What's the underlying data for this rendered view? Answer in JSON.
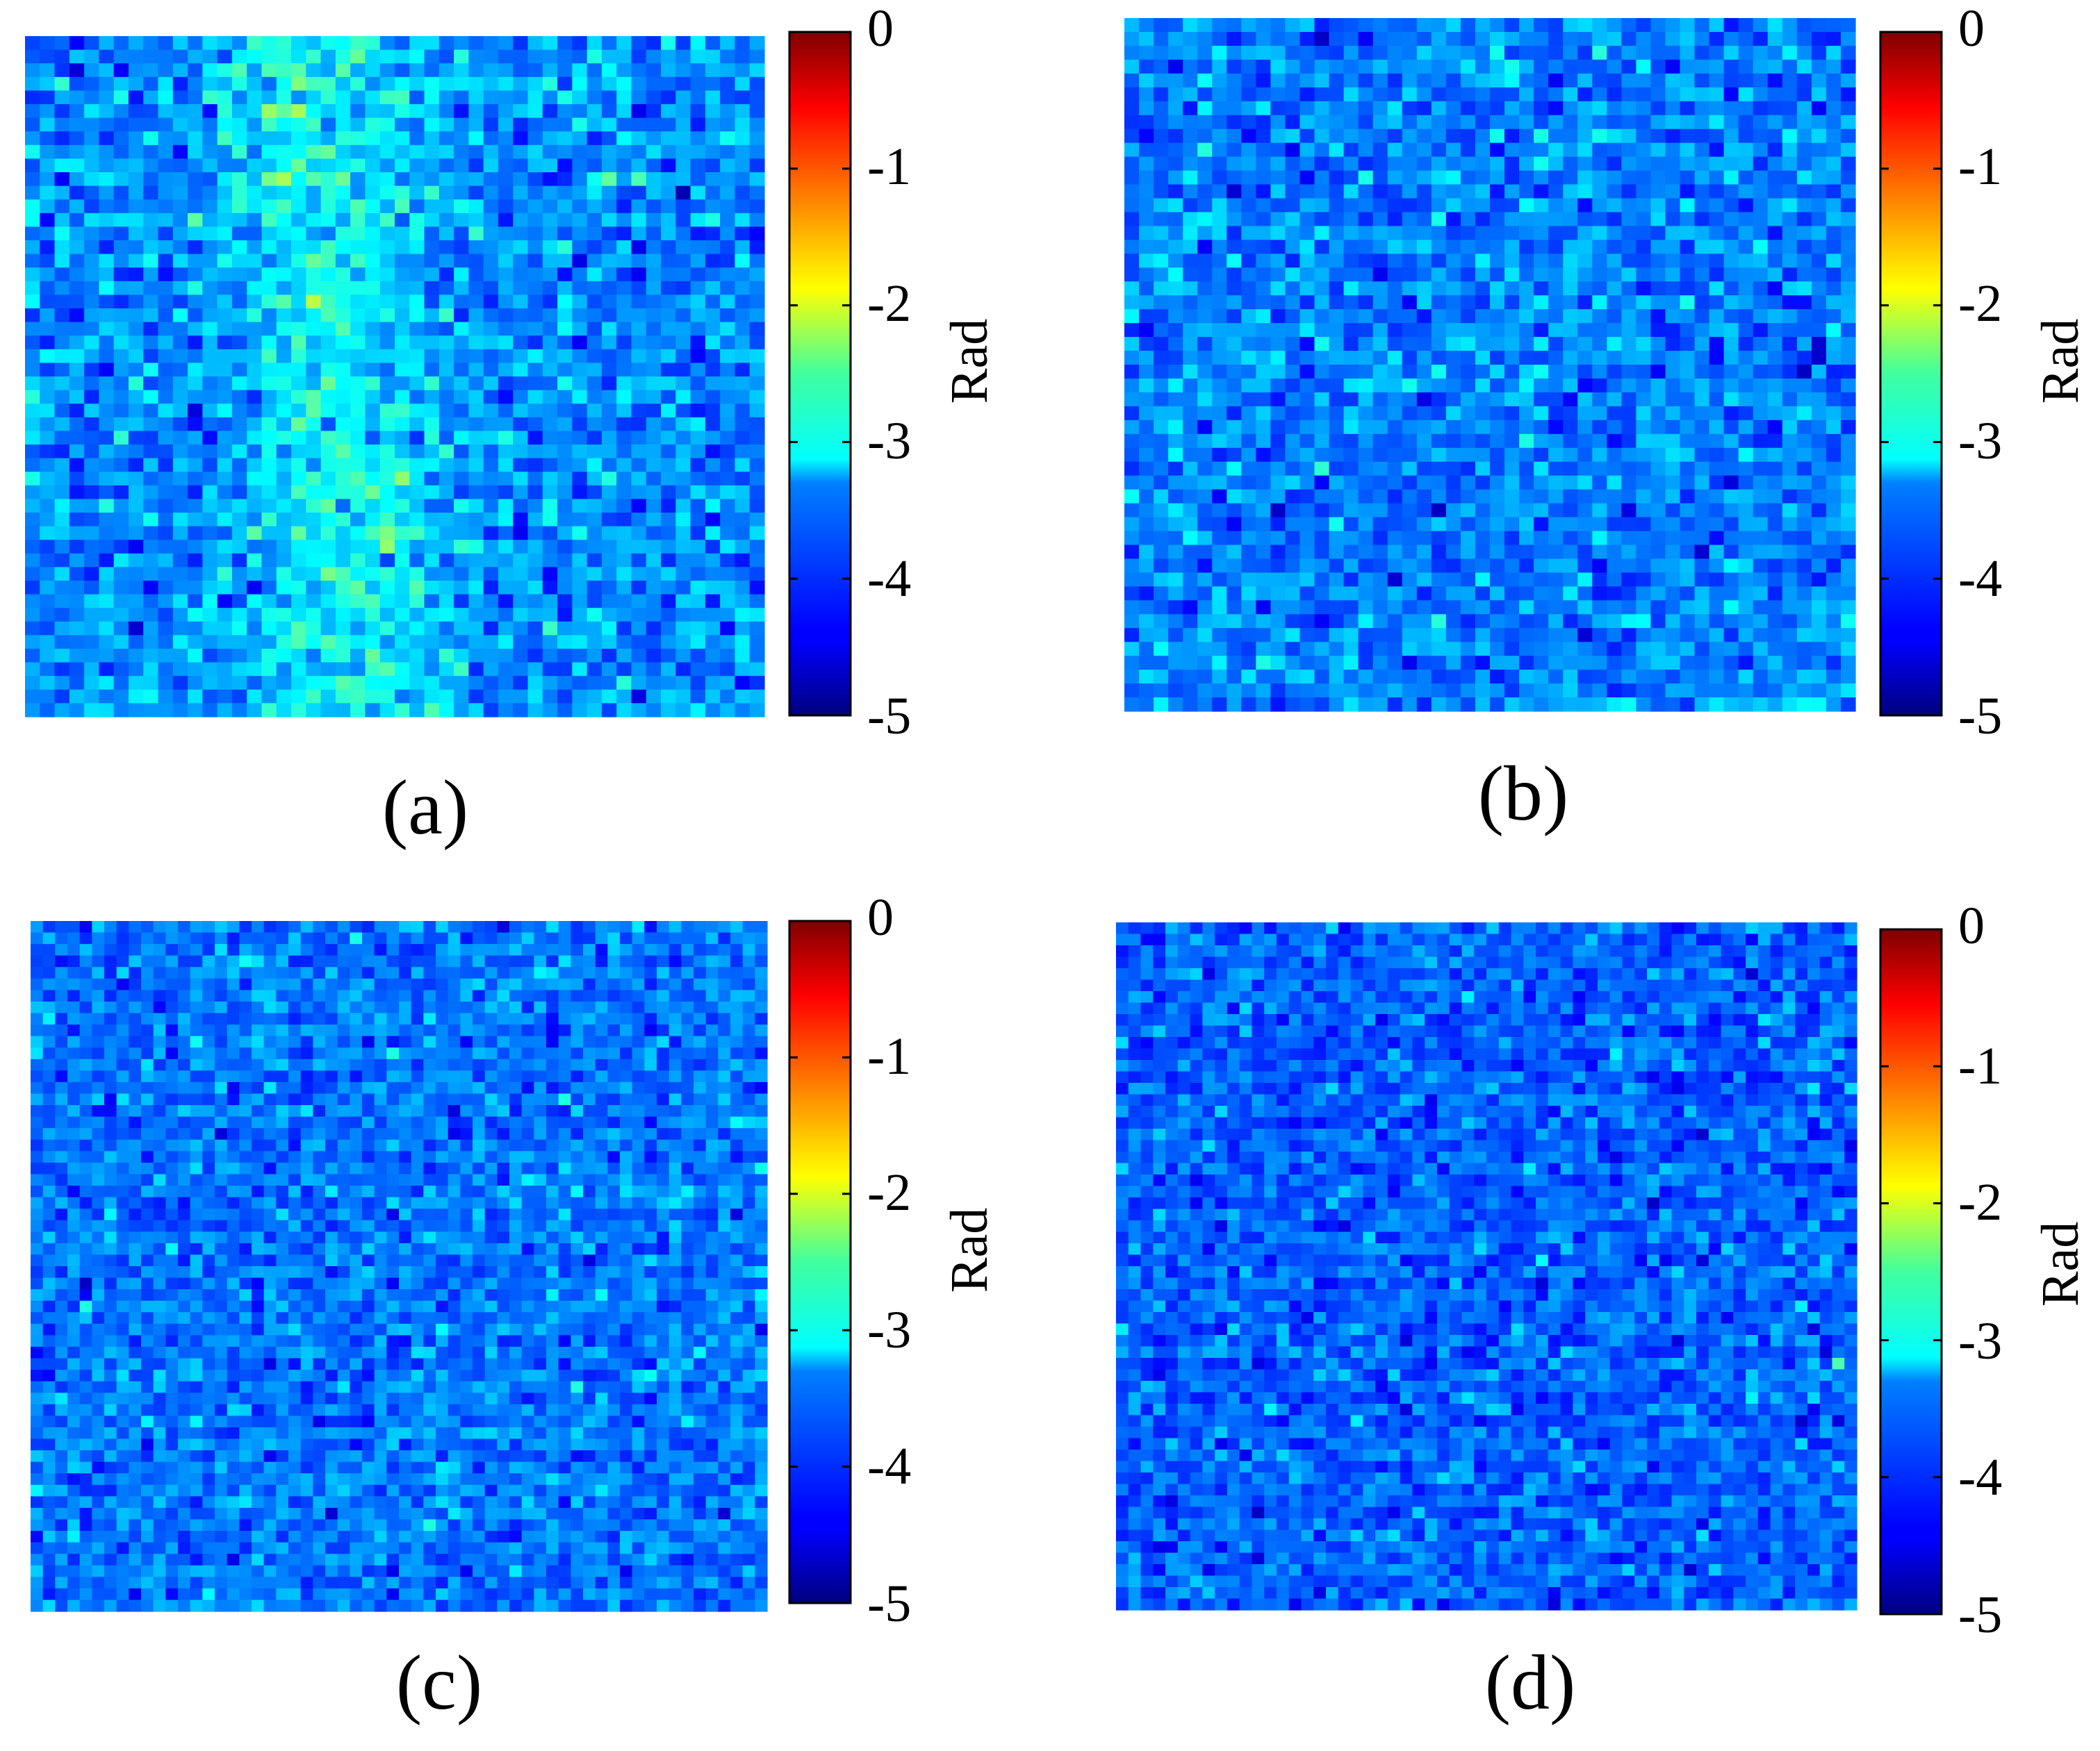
{
  "colors": {
    "colormap": "jet",
    "background": "#ffffff",
    "frame": "#000000"
  },
  "chart_data": [
    {
      "type": "heatmap",
      "panel_label": "(a)",
      "description": "phase map",
      "grid": [
        50,
        50
      ],
      "colorbar": {
        "label": "Rad",
        "range": [
          -5,
          0
        ],
        "ticks": [
          "0",
          "-1",
          "-2",
          "-3",
          "-4",
          "-5"
        ]
      },
      "values_summary": {
        "mean": -3.45,
        "spread": 0.55,
        "note": "lighter (cyan/green) band running through the middle-left, darker blue toward right"
      },
      "seed": 11,
      "pattern": "band"
    },
    {
      "type": "heatmap",
      "panel_label": "(b)",
      "description": "phase map",
      "grid": [
        50,
        50
      ],
      "colorbar": {
        "label": "Rad",
        "range": [
          -5,
          0
        ],
        "ticks": [
          "0",
          "-1",
          "-2",
          "-3",
          "-4",
          "-5"
        ]
      },
      "values_summary": {
        "mean": -3.75,
        "spread": 0.5,
        "note": "mostly blue with scattered cyan pixels"
      },
      "seed": 29,
      "pattern": "uniform"
    },
    {
      "type": "heatmap",
      "panel_label": "(c)",
      "description": "phase map",
      "grid": [
        60,
        60
      ],
      "colorbar": {
        "label": "Rad",
        "range": [
          -5,
          0
        ],
        "ticks": [
          "0",
          "-1",
          "-2",
          "-3",
          "-4",
          "-5"
        ]
      },
      "values_summary": {
        "mean": -3.8,
        "spread": 0.45,
        "note": "fine-grained blue noise"
      },
      "seed": 47,
      "pattern": "uniform"
    },
    {
      "type": "heatmap",
      "panel_label": "(d)",
      "description": "phase map",
      "grid": [
        60,
        60
      ],
      "colorbar": {
        "label": "Rad",
        "range": [
          -5,
          0
        ],
        "ticks": [
          "0",
          "-1",
          "-2",
          "-3",
          "-4",
          "-5"
        ]
      },
      "values_summary": {
        "mean": -3.9,
        "spread": 0.45,
        "note": "fine-grained, slightly darker blue noise"
      },
      "seed": 83,
      "pattern": "uniform"
    }
  ]
}
